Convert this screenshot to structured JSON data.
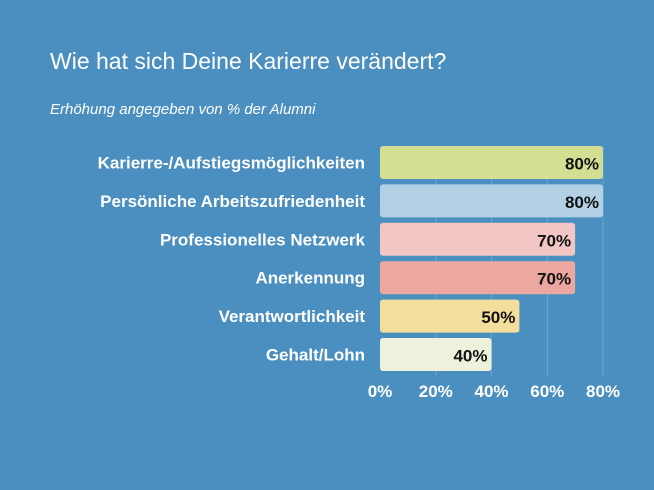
{
  "chart_data": {
    "type": "bar",
    "orientation": "horizontal",
    "title": "Wie hat sich Deine Karierre verändert?",
    "subtitle": "Erhöhung angegeben von % der Alumni",
    "categories": [
      "Karierre-/Aufstiegsmöglichkeiten",
      "Persönliche Arbeitszufriedenheit",
      "Professionelles Netzwerk",
      "Anerkennung",
      "Verantwortlichkeit",
      "Gehalt/Lohn"
    ],
    "values": [
      80,
      80,
      70,
      70,
      50,
      40
    ],
    "value_labels": [
      "80%",
      "80%",
      "70%",
      "70%",
      "50%",
      "40%"
    ],
    "colors": [
      "#d4df94",
      "#b3d0e5",
      "#f2c6c4",
      "#eca7a1",
      "#f3de9e",
      "#eef1dc"
    ],
    "xlim": [
      0,
      80
    ],
    "ticks": [
      0,
      20,
      40,
      60,
      80
    ],
    "tick_labels": [
      "0%",
      "20%",
      "40%",
      "60%",
      "80%"
    ],
    "xlabel": "",
    "ylabel": "",
    "grid": true,
    "legend": "none"
  }
}
